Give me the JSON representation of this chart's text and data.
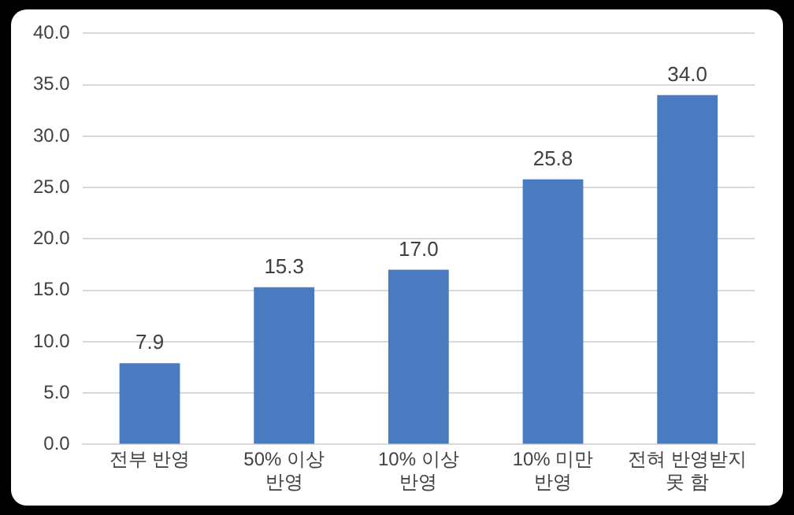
{
  "chart_data": {
    "type": "bar",
    "categories": [
      "전부 반영",
      "50% 이상 반영",
      "10% 이상 반영",
      "10% 미만 반영",
      "전혀 반영받지 못 함"
    ],
    "values": [
      7.9,
      15.3,
      17.0,
      25.8,
      34.0
    ],
    "value_labels": [
      "7.9",
      "15.3",
      "17.0",
      "25.8",
      "34.0"
    ],
    "color": "#4a7bc0",
    "ylim": [
      0,
      40
    ],
    "yticks": [
      {
        "value": 0,
        "label": "0.0"
      },
      {
        "value": 5,
        "label": "5.0"
      },
      {
        "value": 10,
        "label": "10.0"
      },
      {
        "value": 15,
        "label": "15.0"
      },
      {
        "value": 20,
        "label": "20.0"
      },
      {
        "value": 25,
        "label": "25.0"
      },
      {
        "value": 30,
        "label": "30.0"
      },
      {
        "value": 35,
        "label": "35.0"
      },
      {
        "value": 40,
        "label": "40.0"
      }
    ],
    "grid": "y",
    "legend": false
  }
}
